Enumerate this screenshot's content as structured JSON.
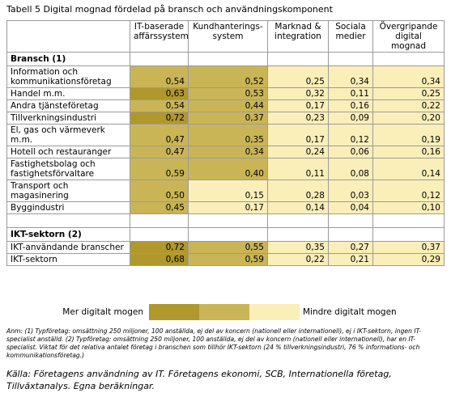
{
  "title": "Tabell 5 Digital mognad fördelad på bransch och användningskomponent",
  "table": {
    "headers": [
      "IT-baserade affärssystem",
      "Kundhanterings-system",
      "Marknad & integration",
      "Sociala medier",
      "Övergripande digital mognad"
    ],
    "sections": [
      {
        "title": "Bransch (1)",
        "rows": [
          {
            "label": "Information och kommunikationsföretag",
            "values": [
              "0,54",
              "0,52",
              "0,25",
              "0,34",
              "0,34"
            ],
            "shades": [
              1,
              1,
              2,
              2,
              2
            ]
          },
          {
            "label": "Handel m.m.",
            "values": [
              "0,63",
              "0,53",
              "0,32",
              "0,11",
              "0,25"
            ],
            "shades": [
              0,
              1,
              2,
              2,
              2
            ]
          },
          {
            "label": "Andra tjänsteföretag",
            "values": [
              "0,54",
              "0,44",
              "0,17",
              "0,16",
              "0,22"
            ],
            "shades": [
              1,
              1,
              2,
              2,
              2
            ]
          },
          {
            "label": "Tillverkningsindustri",
            "values": [
              "0,72",
              "0,37",
              "0,23",
              "0,09",
              "0,20"
            ],
            "shades": [
              0,
              1,
              2,
              2,
              2
            ]
          },
          {
            "label": "El, gas och värmeverk m.m.",
            "values": [
              "0,47",
              "0,35",
              "0,17",
              "0,12",
              "0,19"
            ],
            "shades": [
              1,
              1,
              2,
              2,
              2
            ]
          },
          {
            "label": "Hotell och restauranger",
            "values": [
              "0,47",
              "0,34",
              "0,24",
              "0,06",
              "0,16"
            ],
            "shades": [
              1,
              1,
              2,
              2,
              2
            ]
          },
          {
            "label": "Fastighetsbolag och fastighetsförvaltare",
            "values": [
              "0,59",
              "0,40",
              "0,11",
              "0,08",
              "0,14"
            ],
            "shades": [
              1,
              1,
              2,
              2,
              2
            ]
          },
          {
            "label": "Transport och magasinering",
            "values": [
              "0,50",
              "0,15",
              "0,28",
              "0,03",
              "0,12"
            ],
            "shades": [
              1,
              2,
              2,
              2,
              2
            ]
          },
          {
            "label": "Byggindustri",
            "values": [
              "0,45",
              "0,17",
              "0,14",
              "0,04",
              "0,10"
            ],
            "shades": [
              1,
              2,
              2,
              2,
              2
            ]
          }
        ]
      },
      {
        "title": "IKT-sektorn (2)",
        "rows": [
          {
            "label": "IKT-användande branscher",
            "values": [
              "0,72",
              "0,55",
              "0,35",
              "0,27",
              "0,37"
            ],
            "shades": [
              0,
              1,
              2,
              2,
              2
            ]
          },
          {
            "label": "IKT-sektorn",
            "values": [
              "0,68",
              "0,59",
              "0,22",
              "0,21",
              "0,29"
            ],
            "shades": [
              0,
              1,
              2,
              2,
              2
            ]
          }
        ]
      }
    ]
  },
  "legend": {
    "high_label": "Mer digitalt mogen",
    "low_label": "Mindre digitalt mogen",
    "colors": [
      "#b0982c",
      "#c9b556",
      "#fbefb9"
    ]
  },
  "note": "Anm: (1) Typföretag: omsättning 250 miljoner, 100 anställda, ej del av koncern (nationell eller internationell), ej i IKT-sektorn, ingen IT-specialist anställd. (2) Typföretag: omsättning 250 miljoner, 100 anställda, ej del av koncern (nationell eller internationell), har en IT-specialist. Viktat för det relativa antalet företag i branschen som tillhör IKT-sektorn (24 % tillverkningsindustri, 76 % informations- och kommunikationsföretag.)",
  "source": "Källa: Företagens användning av IT. Företagens ekonomi, SCB, Internationella företag, Tillväxtanalys. Egna beräkningar."
}
